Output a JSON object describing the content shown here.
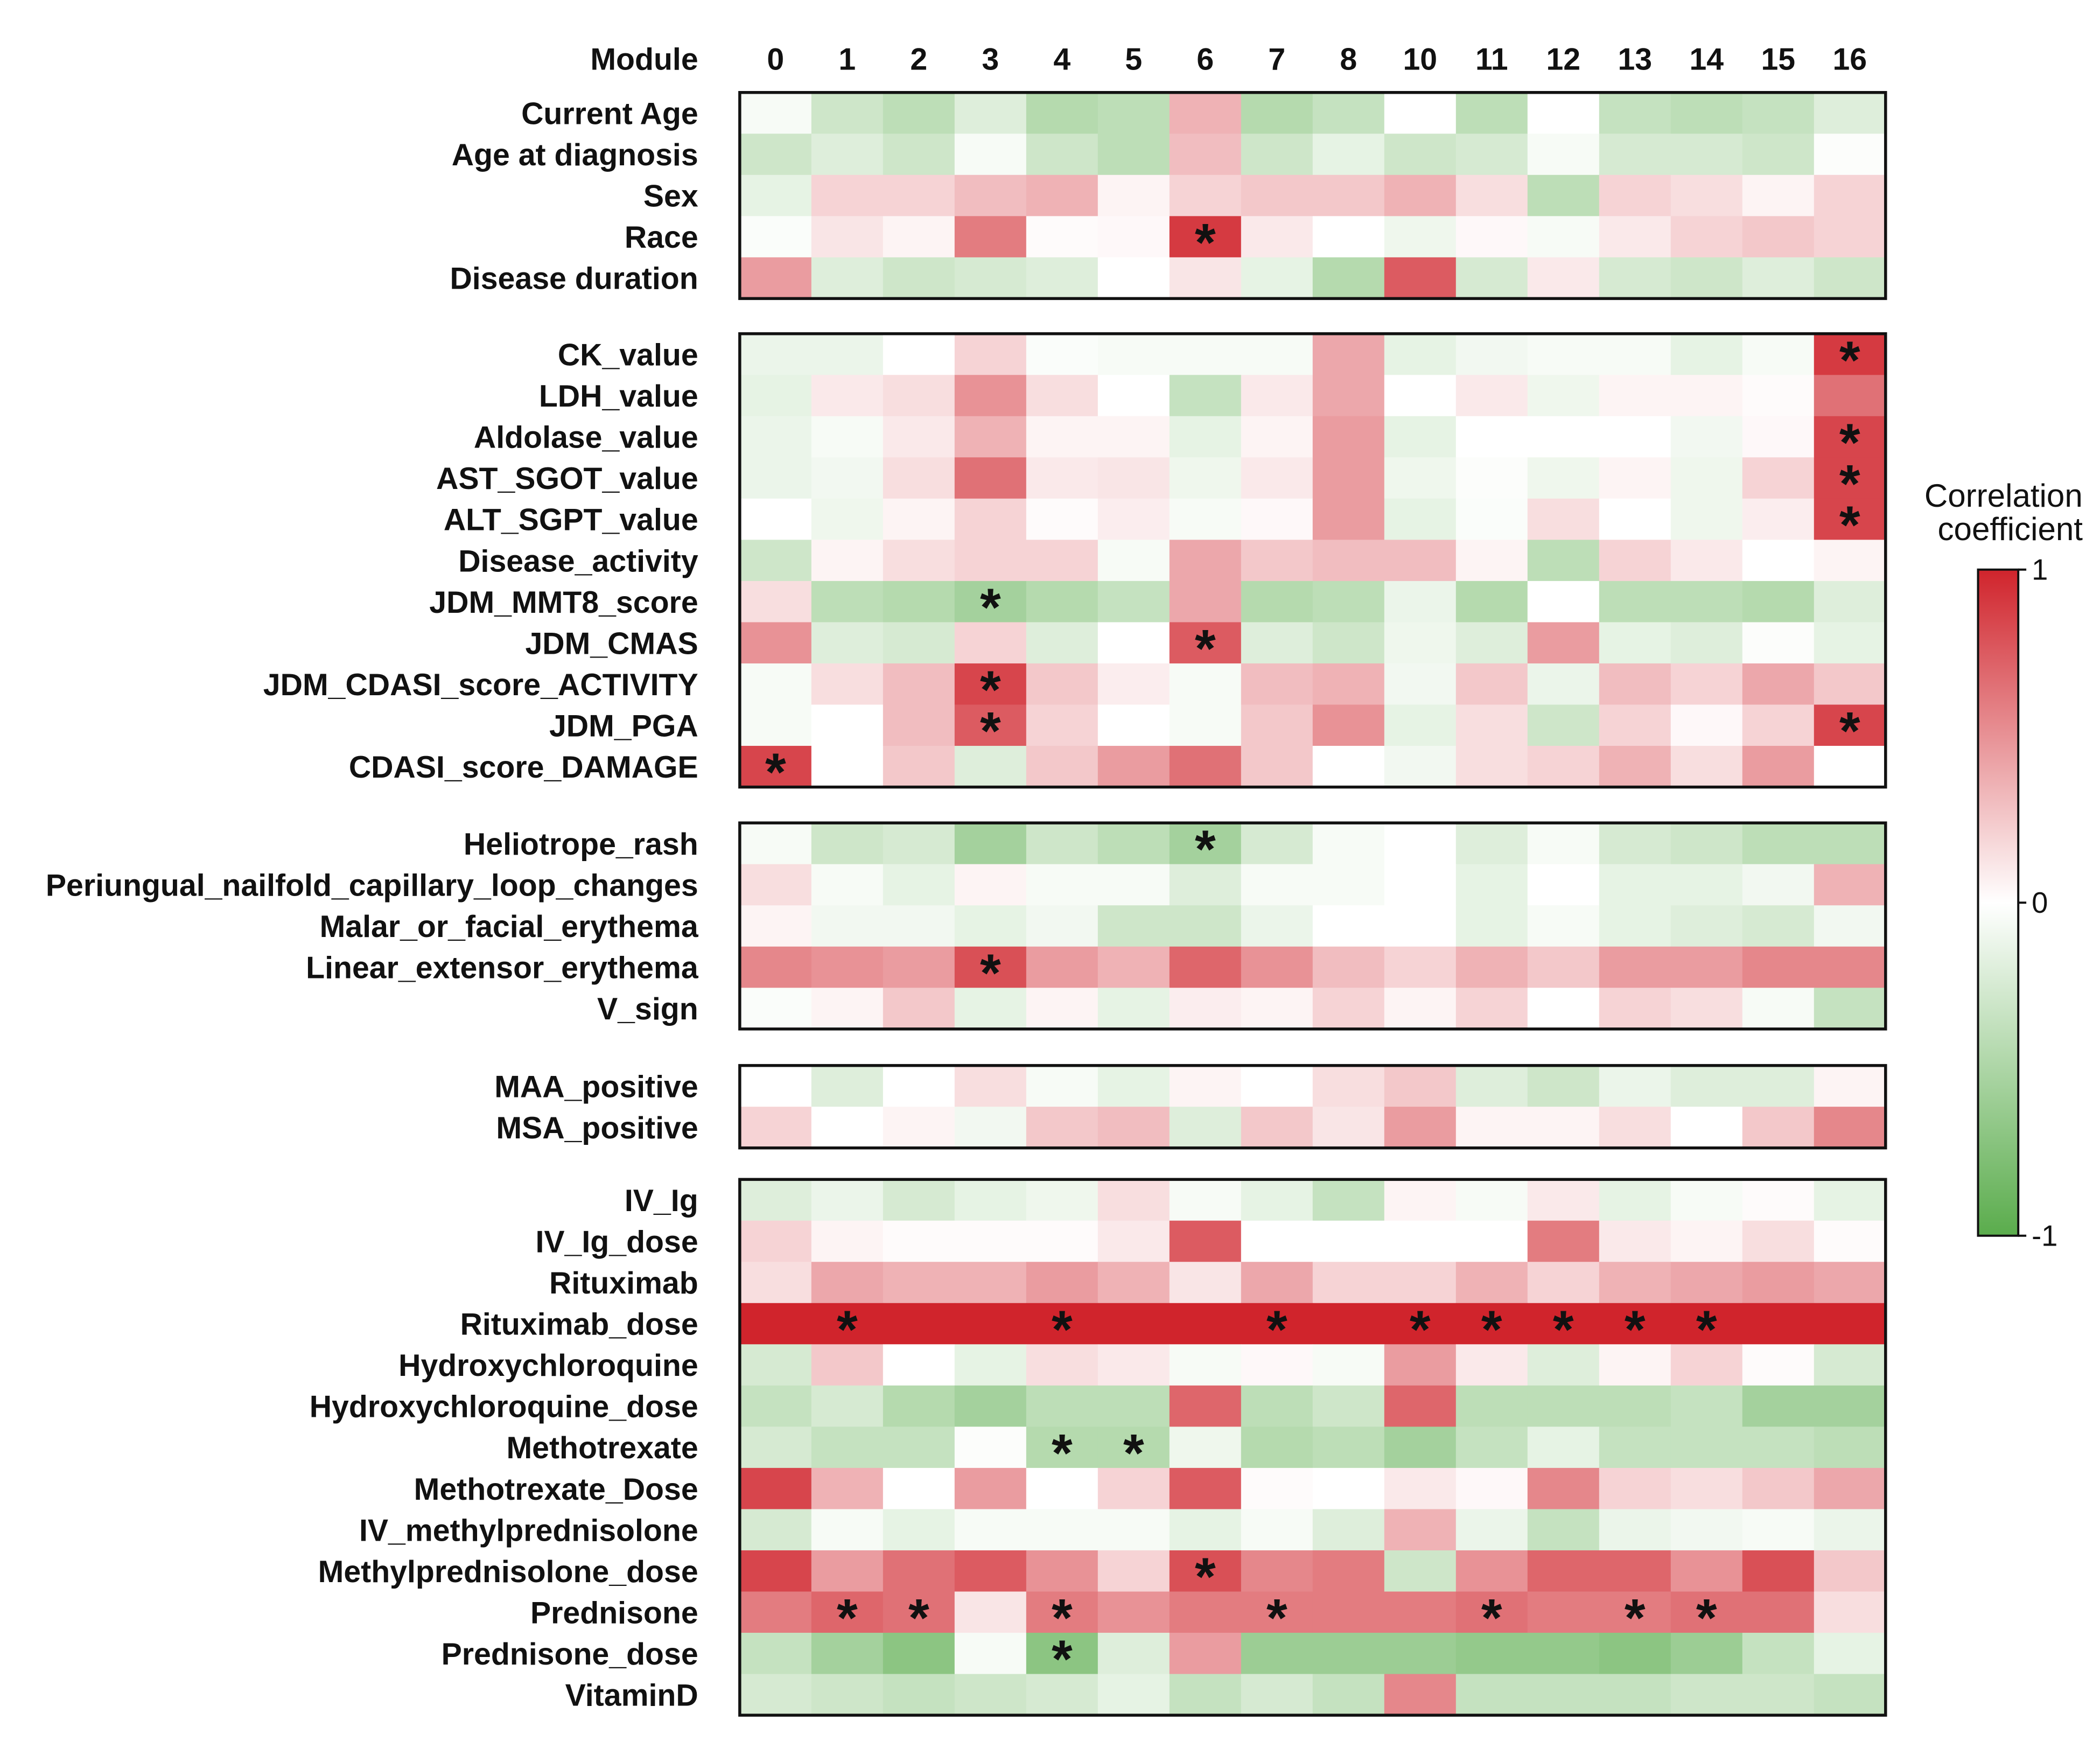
{
  "chart_data": {
    "type": "heatmap",
    "title": "",
    "x_label": "Module",
    "columns": [
      "0",
      "1",
      "2",
      "3",
      "4",
      "5",
      "6",
      "7",
      "8",
      "10",
      "11",
      "12",
      "13",
      "14",
      "15",
      "16"
    ],
    "groups": [
      {
        "rows": [
          "Current Age",
          "Age at diagnosis",
          "Sex",
          "Race",
          "Disease duration"
        ],
        "values": [
          [
            -0.05,
            -0.3,
            -0.4,
            -0.2,
            -0.45,
            -0.4,
            0.35,
            -0.45,
            -0.35,
            0.0,
            -0.4,
            0.0,
            -0.35,
            -0.4,
            -0.35,
            -0.2
          ],
          [
            -0.3,
            -0.2,
            -0.3,
            -0.05,
            -0.3,
            -0.4,
            0.3,
            -0.3,
            -0.15,
            -0.3,
            -0.25,
            -0.05,
            -0.25,
            -0.25,
            -0.3,
            -0.02
          ],
          [
            -0.15,
            0.2,
            0.2,
            0.3,
            0.35,
            0.05,
            0.2,
            0.25,
            0.25,
            0.35,
            0.15,
            -0.4,
            0.2,
            0.15,
            0.05,
            0.2
          ],
          [
            -0.03,
            0.12,
            0.05,
            0.6,
            0.02,
            0.03,
            0.9,
            0.1,
            0.0,
            -0.1,
            0.03,
            -0.05,
            0.1,
            0.2,
            0.25,
            0.2
          ],
          [
            0.45,
            -0.2,
            -0.3,
            -0.25,
            -0.2,
            0.0,
            0.12,
            -0.15,
            -0.45,
            0.75,
            -0.25,
            0.1,
            -0.25,
            -0.3,
            -0.2,
            -0.3
          ]
        ],
        "stars": [
          [
            3,
            6
          ]
        ]
      },
      {
        "rows": [
          "CK_value",
          "LDH_value",
          "Aldolase_value",
          "AST_SGOT_value",
          "ALT_SGPT_value",
          "Disease_activity",
          "JDM_MMT8_score",
          "JDM_CMAS",
          "JDM_CDASI_score_ACTIVITY",
          "JDM_PGA",
          "CDASI_score_DAMAGE"
        ],
        "values": [
          [
            -0.12,
            -0.12,
            0.0,
            0.2,
            -0.03,
            -0.05,
            -0.05,
            -0.05,
            0.4,
            -0.15,
            -0.08,
            -0.05,
            -0.05,
            -0.15,
            -0.05,
            0.9
          ],
          [
            -0.15,
            0.1,
            0.15,
            0.5,
            0.15,
            0.0,
            -0.35,
            0.1,
            0.4,
            0.0,
            0.1,
            -0.1,
            0.05,
            0.05,
            0.02,
            0.65
          ],
          [
            -0.12,
            -0.05,
            0.1,
            0.35,
            0.05,
            0.05,
            -0.15,
            0.05,
            0.45,
            -0.15,
            0.0,
            0.0,
            0.0,
            -0.08,
            0.03,
            0.85
          ],
          [
            -0.12,
            -0.08,
            0.15,
            0.65,
            0.1,
            0.12,
            -0.1,
            0.1,
            0.45,
            -0.1,
            -0.02,
            -0.1,
            0.05,
            -0.1,
            0.2,
            0.85
          ],
          [
            0.0,
            -0.1,
            0.05,
            0.2,
            0.02,
            0.08,
            -0.05,
            0.03,
            0.45,
            -0.15,
            -0.03,
            0.15,
            0.0,
            -0.1,
            0.08,
            0.85
          ],
          [
            -0.3,
            0.05,
            0.15,
            0.2,
            0.2,
            -0.05,
            0.4,
            0.25,
            0.3,
            0.3,
            0.05,
            -0.4,
            0.2,
            0.1,
            0.0,
            0.05
          ],
          [
            0.15,
            -0.4,
            -0.45,
            -0.55,
            -0.45,
            -0.35,
            0.4,
            -0.45,
            -0.4,
            -0.12,
            -0.45,
            0.0,
            -0.4,
            -0.4,
            -0.45,
            -0.2
          ],
          [
            0.5,
            -0.2,
            -0.25,
            0.2,
            -0.2,
            0.0,
            0.75,
            -0.2,
            -0.3,
            -0.1,
            -0.2,
            0.45,
            -0.15,
            -0.2,
            -0.02,
            -0.15
          ],
          [
            -0.05,
            0.15,
            0.3,
            0.85,
            0.25,
            0.08,
            -0.05,
            0.3,
            0.35,
            -0.08,
            0.25,
            -0.12,
            0.3,
            0.2,
            0.4,
            0.25
          ],
          [
            -0.05,
            0.0,
            0.3,
            0.75,
            0.2,
            0.0,
            -0.05,
            0.25,
            0.5,
            -0.15,
            0.15,
            -0.3,
            0.2,
            0.03,
            0.2,
            0.85
          ],
          [
            0.85,
            0.0,
            0.25,
            -0.2,
            0.25,
            0.45,
            0.65,
            0.25,
            0.0,
            -0.08,
            0.15,
            0.2,
            0.35,
            0.15,
            0.45,
            0.0
          ]
        ],
        "stars": [
          [
            0,
            15
          ],
          [
            2,
            15
          ],
          [
            3,
            15
          ],
          [
            4,
            15
          ],
          [
            6,
            3
          ],
          [
            7,
            6
          ],
          [
            8,
            3
          ],
          [
            9,
            3
          ],
          [
            9,
            15
          ],
          [
            10,
            0
          ]
        ]
      },
      {
        "rows": [
          "Heliotrope_rash",
          "Periungual_nailfold_capillary_loop_changes",
          "Malar_or_facial_erythema",
          "Linear_extensor_erythema",
          "V_sign"
        ],
        "values": [
          [
            -0.05,
            -0.3,
            -0.25,
            -0.55,
            -0.3,
            -0.4,
            -0.55,
            -0.25,
            -0.05,
            0.0,
            -0.2,
            -0.05,
            -0.25,
            -0.3,
            -0.4,
            -0.4
          ],
          [
            0.15,
            -0.05,
            -0.15,
            0.05,
            -0.05,
            -0.05,
            -0.2,
            -0.05,
            -0.05,
            0.0,
            -0.15,
            0.0,
            -0.15,
            -0.15,
            -0.08,
            0.35
          ],
          [
            0.05,
            -0.08,
            -0.08,
            -0.15,
            -0.08,
            -0.3,
            -0.3,
            -0.12,
            0.0,
            0.0,
            -0.15,
            -0.05,
            -0.15,
            -0.2,
            -0.25,
            -0.08
          ],
          [
            0.55,
            0.5,
            0.45,
            0.8,
            0.45,
            0.35,
            0.7,
            0.5,
            0.3,
            0.2,
            0.35,
            0.25,
            0.45,
            0.45,
            0.55,
            0.55
          ],
          [
            -0.03,
            0.05,
            0.25,
            -0.15,
            0.05,
            -0.15,
            0.08,
            0.05,
            0.2,
            0.05,
            0.2,
            0.0,
            0.2,
            0.15,
            -0.05,
            -0.35
          ]
        ],
        "stars": [
          [
            0,
            6
          ],
          [
            3,
            3
          ]
        ]
      },
      {
        "rows": [
          "MAA_positive",
          "MSA_positive"
        ],
        "values": [
          [
            0.0,
            -0.2,
            0.0,
            0.15,
            -0.05,
            -0.15,
            0.05,
            0.0,
            0.15,
            0.25,
            -0.2,
            -0.3,
            -0.12,
            -0.2,
            -0.2,
            0.05
          ],
          [
            0.2,
            0.0,
            0.05,
            -0.08,
            0.25,
            0.3,
            -0.2,
            0.25,
            0.12,
            0.45,
            0.05,
            0.05,
            0.15,
            0.0,
            0.25,
            0.55
          ]
        ],
        "stars": []
      },
      {
        "rows": [
          "IV_Ig",
          "IV_Ig_dose",
          "Rituximab",
          "Rituximab_dose",
          "Hydroxychloroquine",
          "Hydroxychloroquine_dose",
          "Methotrexate",
          "Methotrexate_Dose",
          "IV_methylprednisolone",
          "Methylprednisolone_dose",
          "Prednisone",
          "Prednisone_dose",
          "VitaminD"
        ],
        "values": [
          [
            -0.2,
            -0.12,
            -0.25,
            -0.15,
            -0.1,
            0.15,
            -0.05,
            -0.15,
            -0.35,
            0.05,
            -0.05,
            0.1,
            -0.15,
            -0.05,
            0.02,
            -0.15
          ],
          [
            0.2,
            0.05,
            0.02,
            0.02,
            0.02,
            0.1,
            0.75,
            0.0,
            0.0,
            0.0,
            0.0,
            0.6,
            0.1,
            0.05,
            0.15,
            0.02
          ],
          [
            0.15,
            0.4,
            0.35,
            0.35,
            0.45,
            0.35,
            0.12,
            0.4,
            0.2,
            0.2,
            0.35,
            0.2,
            0.35,
            0.4,
            0.45,
            0.4
          ],
          [
            1.0,
            1.0,
            1.0,
            1.0,
            1.0,
            1.0,
            1.0,
            1.0,
            1.0,
            1.0,
            1.0,
            1.0,
            1.0,
            1.0,
            1.0,
            1.0
          ],
          [
            -0.25,
            0.25,
            0.0,
            -0.15,
            0.15,
            0.1,
            -0.05,
            0.03,
            -0.05,
            0.45,
            0.1,
            -0.2,
            0.05,
            0.2,
            0.02,
            -0.25
          ],
          [
            -0.35,
            -0.25,
            -0.45,
            -0.55,
            -0.4,
            -0.4,
            0.7,
            -0.4,
            -0.3,
            0.7,
            -0.4,
            -0.4,
            -0.4,
            -0.35,
            -0.55,
            -0.55
          ],
          [
            -0.25,
            -0.35,
            -0.35,
            -0.02,
            -0.45,
            -0.45,
            -0.1,
            -0.45,
            -0.4,
            -0.55,
            -0.35,
            -0.15,
            -0.35,
            -0.35,
            -0.35,
            -0.4
          ],
          [
            0.85,
            0.35,
            0.0,
            0.45,
            0.0,
            0.2,
            0.75,
            0.02,
            0.0,
            0.1,
            0.03,
            0.55,
            0.2,
            0.15,
            0.25,
            0.4
          ],
          [
            -0.25,
            -0.05,
            -0.15,
            -0.05,
            -0.05,
            -0.05,
            -0.15,
            -0.05,
            -0.2,
            0.35,
            -0.12,
            -0.35,
            -0.12,
            -0.08,
            -0.05,
            -0.12
          ],
          [
            0.85,
            0.45,
            0.65,
            0.75,
            0.5,
            0.2,
            0.8,
            0.55,
            0.6,
            -0.3,
            0.5,
            0.7,
            0.7,
            0.5,
            0.8,
            0.25
          ],
          [
            0.6,
            0.7,
            0.65,
            0.12,
            0.6,
            0.5,
            0.6,
            0.6,
            0.6,
            0.6,
            0.65,
            0.6,
            0.6,
            0.65,
            0.65,
            0.15
          ],
          [
            -0.35,
            -0.55,
            -0.7,
            -0.05,
            -0.7,
            -0.2,
            0.45,
            -0.6,
            -0.6,
            -0.6,
            -0.65,
            -0.65,
            -0.7,
            -0.6,
            -0.35,
            -0.15
          ],
          [
            -0.25,
            -0.3,
            -0.35,
            -0.3,
            -0.25,
            -0.15,
            -0.35,
            -0.25,
            -0.35,
            0.55,
            -0.35,
            -0.35,
            -0.35,
            -0.3,
            -0.3,
            -0.35
          ]
        ],
        "stars": [
          [
            3,
            1
          ],
          [
            3,
            4
          ],
          [
            3,
            7
          ],
          [
            3,
            9
          ],
          [
            3,
            10
          ],
          [
            3,
            11
          ],
          [
            3,
            12
          ],
          [
            3,
            13
          ],
          [
            6,
            4
          ],
          [
            6,
            5
          ],
          [
            9,
            6
          ],
          [
            10,
            1
          ],
          [
            10,
            2
          ],
          [
            10,
            4
          ],
          [
            10,
            7
          ],
          [
            10,
            10
          ],
          [
            10,
            12
          ],
          [
            10,
            13
          ],
          [
            11,
            4
          ]
        ]
      }
    ],
    "color_scale": {
      "title": [
        "Correlation",
        "coefficient"
      ],
      "min": -1,
      "mid": 0,
      "max": 1,
      "tick_labels": [
        "1",
        "0",
        "-1"
      ],
      "min_color": "#5aac4c",
      "mid_color": "#ffffff",
      "max_color": "#d0242c"
    },
    "star_symbol": "*"
  }
}
